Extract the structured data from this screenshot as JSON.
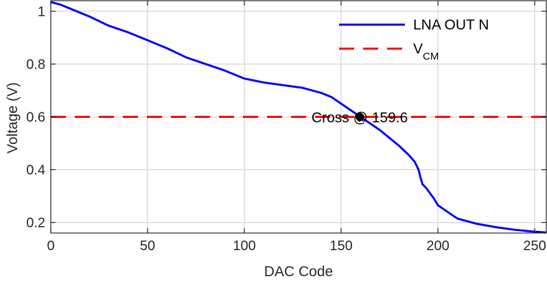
{
  "chart_data": {
    "type": "line",
    "xlabel": "DAC Code",
    "ylabel": "Voltage (V)",
    "xlim": [
      0,
      256
    ],
    "ylim": [
      0.16,
      1.04
    ],
    "xticks": [
      0,
      50,
      100,
      150,
      200,
      250
    ],
    "yticks": [
      0.2,
      0.4,
      0.6,
      0.8,
      1
    ],
    "ytick_labels": [
      "0.2",
      "0.4",
      "0.6",
      "0.8",
      "1"
    ],
    "grid": true,
    "legend_position": "top-right",
    "series": [
      {
        "name": "LNA OUT N",
        "style": "solid",
        "color": "#0000ff",
        "x": [
          0,
          5,
          10,
          20,
          30,
          40,
          50,
          60,
          70,
          80,
          90,
          100,
          110,
          120,
          130,
          135,
          140,
          145,
          150,
          155,
          160,
          165,
          170,
          175,
          180,
          185,
          188,
          190,
          191,
          192,
          194,
          196,
          198,
          200,
          205,
          210,
          220,
          230,
          240,
          250,
          256
        ],
        "y": [
          1.035,
          1.025,
          1.01,
          0.98,
          0.945,
          0.92,
          0.89,
          0.86,
          0.825,
          0.8,
          0.775,
          0.745,
          0.73,
          0.72,
          0.71,
          0.7,
          0.69,
          0.675,
          0.65,
          0.625,
          0.6,
          0.575,
          0.55,
          0.52,
          0.49,
          0.455,
          0.43,
          0.4,
          0.37,
          0.345,
          0.33,
          0.31,
          0.29,
          0.265,
          0.24,
          0.215,
          0.195,
          0.182,
          0.172,
          0.165,
          0.162
        ]
      },
      {
        "name": "V",
        "name_subscript": "CM",
        "style": "dashed",
        "color": "#ff0000",
        "x": [
          0,
          256
        ],
        "y": [
          0.6,
          0.6
        ]
      }
    ],
    "annotation": {
      "label": "Cross @ 159.6",
      "x": 159.6,
      "y": 0.6
    }
  }
}
